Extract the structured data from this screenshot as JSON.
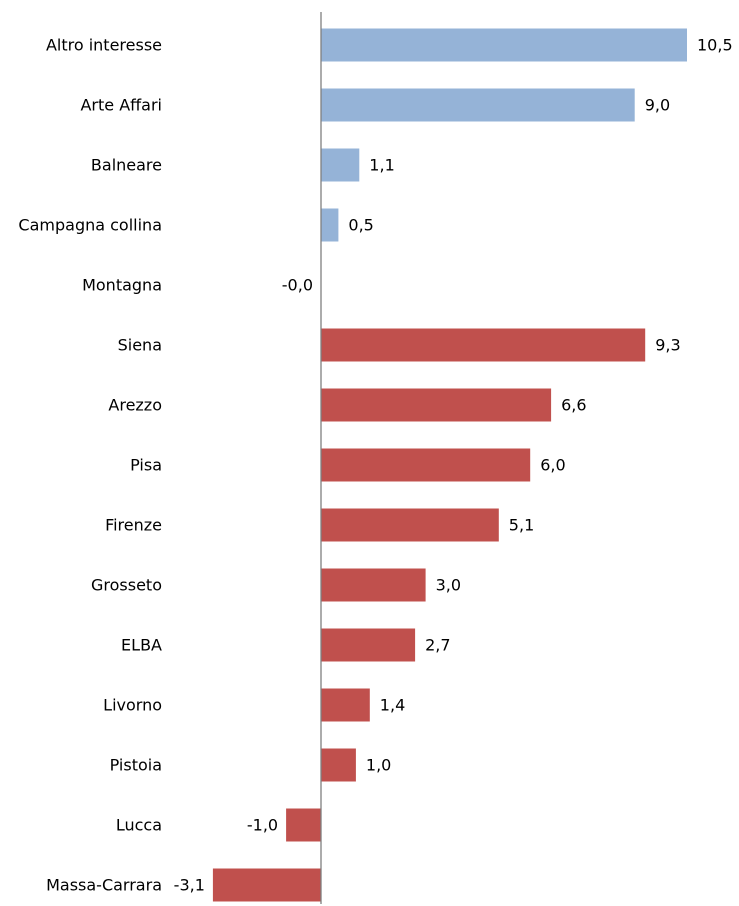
{
  "chart_data": {
    "type": "bar",
    "orientation": "horizontal",
    "categories": [
      "Altro interesse",
      "Arte Affari",
      "Balneare",
      "Campagna collina",
      "Montagna",
      "Siena",
      "Arezzo",
      "Pisa",
      "Firenze",
      "Grosseto",
      "ELBA",
      "Livorno",
      "Pistoia",
      "Lucca",
      "Massa-Carrara"
    ],
    "values": [
      10.5,
      9.0,
      1.1,
      0.5,
      -0.0,
      9.3,
      6.6,
      6.0,
      5.1,
      3.0,
      2.7,
      1.4,
      1.0,
      -1.0,
      -3.1
    ],
    "value_labels": [
      "10,5",
      "9,0",
      "1,1",
      "0,5",
      "-0,0",
      "9,3",
      "6,6",
      "6,0",
      "5,1",
      "3,0",
      "2,7",
      "1,4",
      "1,0",
      "-1,0",
      "-3,1"
    ],
    "bar_groups": [
      "type",
      "type",
      "type",
      "type",
      "type",
      "province",
      "province",
      "province",
      "province",
      "province",
      "province",
      "province",
      "province",
      "province",
      "province"
    ],
    "group_colors": {
      "type": "#95b3d7",
      "province": "#c0504d"
    },
    "xlim": [
      -3.1,
      10.5
    ],
    "axis_color": "#7f7f7f",
    "title": "",
    "xlabel": "",
    "ylabel": "",
    "grid": false,
    "legend": "none"
  }
}
